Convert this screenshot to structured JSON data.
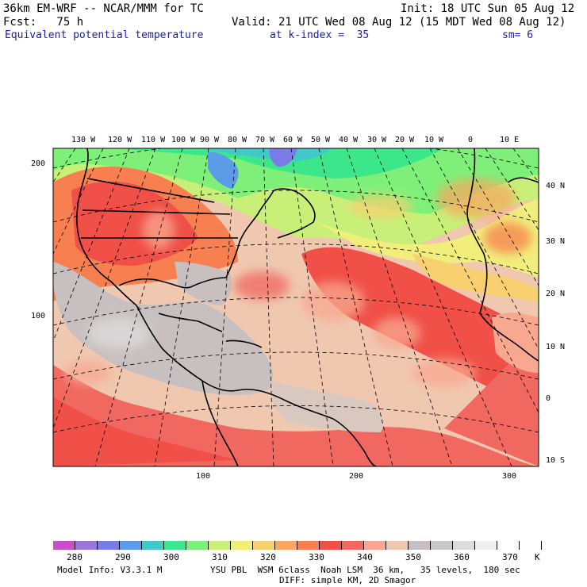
{
  "header": {
    "model_line": "36km EM-WRF -- NCAR/MMM for TC",
    "init_line": "Init: 18 UTC Sun 05 Aug 12",
    "fcst_line": "Fcst:   75 h",
    "valid_line": "Valid: 21 UTC Wed 08 Aug 12 (15 MDT Wed 08 Aug 12)",
    "field_name": "Equivalent potential temperature",
    "level": "at k-index =  35",
    "smoothing": "sm= 6"
  },
  "map": {
    "lon_labels": [
      "130 W",
      "120 W",
      "110 W",
      "100 W",
      "90 W",
      "80 W",
      "70 W",
      "60 W",
      "50 W",
      "40 W",
      "30 W",
      "20 W",
      "10 W",
      "0",
      "10 E"
    ],
    "lat_labels": [
      "40 N",
      "30 N",
      "20 N",
      "10 N",
      "0",
      "10 S"
    ],
    "y_grid_labels": [
      "200",
      "100"
    ],
    "x_grid_labels": [
      "100",
      "200",
      "300"
    ]
  },
  "colorbar": {
    "labels": [
      "280",
      "290",
      "300",
      "310",
      "320",
      "330",
      "340",
      "350",
      "360",
      "370"
    ],
    "unit": "K",
    "colors": [
      "#c84fc8",
      "#9a78d8",
      "#7b7be8",
      "#5b9be8",
      "#41c8c8",
      "#3ce68a",
      "#7ef07a",
      "#c8f078",
      "#f0f078",
      "#f8d070",
      "#f8a860",
      "#f88050",
      "#f05048",
      "#f06860",
      "#f8a890",
      "#f0c8b0",
      "#c8c0c0",
      "#c8c8c8",
      "#dcdcdc",
      "#f0f0f0",
      "#ffffff",
      "#ffffff"
    ]
  },
  "footer": {
    "model_info": "Model Info: V3.3.1 M",
    "physics": "YSU PBL  WSM 6class  Noah LSM  36 km,   35 levels,  180 sec",
    "diffusion": "DIFF: simple KM, 2D Smagor"
  }
}
